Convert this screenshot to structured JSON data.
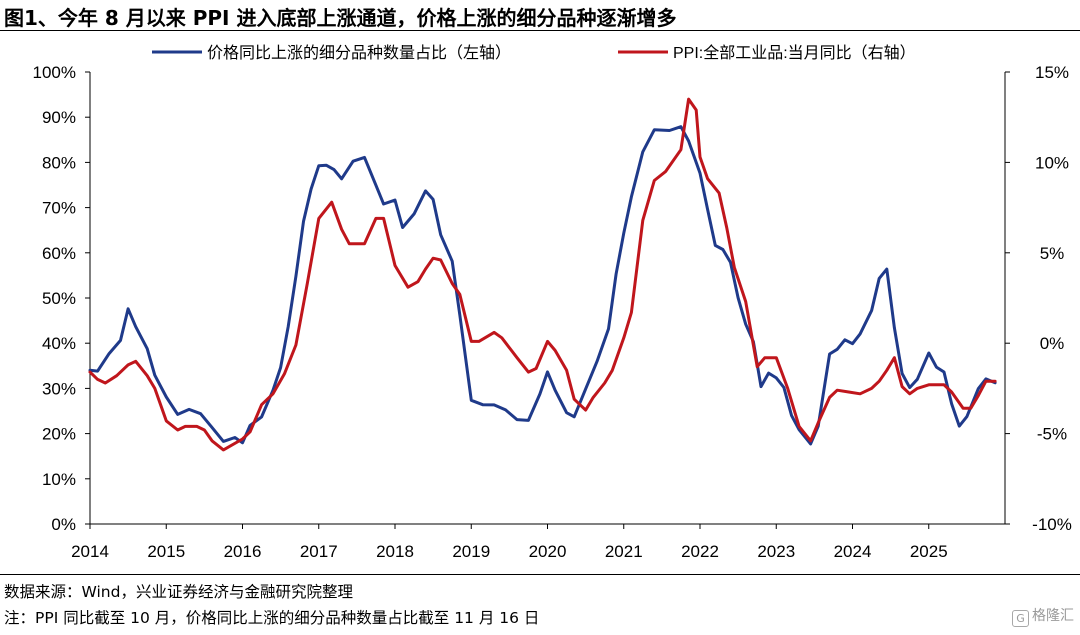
{
  "title": "图1、今年 8 月以来 PPI 进入底部上涨通道，价格上涨的细分品种逐渐增多",
  "source": "数据来源：Wind，兴业证券经济与金融研究院整理",
  "note": "注：PPI 同比截至 10 月，价格同比上涨的细分品种数量占比截至 11 月 16 日",
  "watermark": "格隆汇",
  "chart_data": {
    "type": "line",
    "x_ticks": [
      "2014",
      "2015",
      "2016",
      "2017",
      "2018",
      "2019",
      "2020",
      "2021",
      "2022",
      "2023",
      "2024",
      "2025"
    ],
    "y_left_ticks": [
      "0%",
      "10%",
      "20%",
      "30%",
      "40%",
      "50%",
      "60%",
      "70%",
      "80%",
      "90%",
      "100%"
    ],
    "y_right_ticks": [
      "-10%",
      "-5%",
      "0%",
      "5%",
      "10%",
      "15%"
    ],
    "ylim_left": [
      0,
      100
    ],
    "ylim_right": [
      -10,
      15
    ],
    "legend_position": "top",
    "grid": false,
    "series": [
      {
        "name": "价格同比上涨的细分品种数量占比（左轴）",
        "axis": "left",
        "color": "#1f3a8a",
        "points": [
          [
            2014.0,
            34
          ],
          [
            2014.1,
            34
          ],
          [
            2014.25,
            38
          ],
          [
            2014.4,
            41
          ],
          [
            2014.5,
            48
          ],
          [
            2014.6,
            44
          ],
          [
            2014.75,
            39
          ],
          [
            2014.85,
            33
          ],
          [
            2015.0,
            28
          ],
          [
            2015.15,
            24
          ],
          [
            2015.3,
            25
          ],
          [
            2015.45,
            24
          ],
          [
            2015.6,
            21
          ],
          [
            2015.75,
            18
          ],
          [
            2015.9,
            19
          ],
          [
            2016.0,
            18
          ],
          [
            2016.1,
            22
          ],
          [
            2016.25,
            24
          ],
          [
            2016.4,
            30
          ],
          [
            2016.5,
            35
          ],
          [
            2016.6,
            44
          ],
          [
            2016.7,
            55
          ],
          [
            2016.8,
            67
          ],
          [
            2016.9,
            74
          ],
          [
            2017.0,
            79
          ],
          [
            2017.1,
            79
          ],
          [
            2017.2,
            78
          ],
          [
            2017.3,
            76
          ],
          [
            2017.45,
            80
          ],
          [
            2017.6,
            81
          ],
          [
            2017.75,
            75
          ],
          [
            2017.85,
            71
          ],
          [
            2018.0,
            72
          ],
          [
            2018.1,
            66
          ],
          [
            2018.25,
            69
          ],
          [
            2018.4,
            74
          ],
          [
            2018.5,
            72
          ],
          [
            2018.6,
            64
          ],
          [
            2018.75,
            58
          ],
          [
            2018.85,
            46
          ],
          [
            2019.0,
            27
          ],
          [
            2019.15,
            26
          ],
          [
            2019.3,
            26
          ],
          [
            2019.45,
            25
          ],
          [
            2019.6,
            23
          ],
          [
            2019.75,
            23
          ],
          [
            2019.9,
            29
          ],
          [
            2020.0,
            34
          ],
          [
            2020.1,
            30
          ],
          [
            2020.25,
            25
          ],
          [
            2020.35,
            24
          ],
          [
            2020.5,
            30
          ],
          [
            2020.65,
            36
          ],
          [
            2020.8,
            43
          ],
          [
            2020.9,
            55
          ],
          [
            2021.0,
            64
          ],
          [
            2021.1,
            72
          ],
          [
            2021.25,
            82
          ],
          [
            2021.4,
            87
          ],
          [
            2021.6,
            87
          ],
          [
            2021.75,
            88
          ],
          [
            2021.85,
            85
          ],
          [
            2022.0,
            78
          ],
          [
            2022.1,
            70
          ],
          [
            2022.2,
            62
          ],
          [
            2022.3,
            61
          ],
          [
            2022.4,
            58
          ],
          [
            2022.5,
            50
          ],
          [
            2022.6,
            44
          ],
          [
            2022.7,
            40
          ],
          [
            2022.8,
            30
          ],
          [
            2022.9,
            33
          ],
          [
            2023.0,
            32
          ],
          [
            2023.1,
            30
          ],
          [
            2023.2,
            24
          ],
          [
            2023.3,
            21
          ],
          [
            2023.45,
            18
          ],
          [
            2023.55,
            22
          ],
          [
            2023.7,
            38
          ],
          [
            2023.8,
            39
          ],
          [
            2023.9,
            41
          ],
          [
            2024.0,
            40
          ],
          [
            2024.1,
            42
          ],
          [
            2024.25,
            47
          ],
          [
            2024.35,
            54
          ],
          [
            2024.45,
            56
          ],
          [
            2024.55,
            43
          ],
          [
            2024.65,
            33
          ],
          [
            2024.75,
            30
          ],
          [
            2024.85,
            32
          ],
          [
            2025.0,
            38
          ],
          [
            2025.1,
            35
          ],
          [
            2025.2,
            34
          ],
          [
            2025.3,
            27
          ],
          [
            2025.4,
            22
          ],
          [
            2025.5,
            24
          ],
          [
            2025.65,
            30
          ],
          [
            2025.75,
            32
          ],
          [
            2025.87,
            31
          ]
        ]
      },
      {
        "name": "PPI:全部工业品:当月同比（右轴）",
        "axis": "right",
        "color": "#c0161c",
        "points": [
          [
            2014.0,
            -1.6
          ],
          [
            2014.1,
            -2.0
          ],
          [
            2014.2,
            -2.2
          ],
          [
            2014.35,
            -1.8
          ],
          [
            2014.5,
            -1.2
          ],
          [
            2014.6,
            -1.0
          ],
          [
            2014.75,
            -1.8
          ],
          [
            2014.85,
            -2.5
          ],
          [
            2015.0,
            -4.3
          ],
          [
            2015.15,
            -4.8
          ],
          [
            2015.25,
            -4.6
          ],
          [
            2015.4,
            -4.6
          ],
          [
            2015.5,
            -4.8
          ],
          [
            2015.6,
            -5.4
          ],
          [
            2015.75,
            -5.9
          ],
          [
            2016.0,
            -5.3
          ],
          [
            2016.1,
            -4.9
          ],
          [
            2016.25,
            -3.4
          ],
          [
            2016.4,
            -2.8
          ],
          [
            2016.55,
            -1.7
          ],
          [
            2016.7,
            -0.1
          ],
          [
            2016.85,
            3.3
          ],
          [
            2017.0,
            6.9
          ],
          [
            2017.17,
            7.8
          ],
          [
            2017.3,
            6.3
          ],
          [
            2017.4,
            5.5
          ],
          [
            2017.6,
            5.5
          ],
          [
            2017.75,
            6.9
          ],
          [
            2017.85,
            6.9
          ],
          [
            2018.0,
            4.3
          ],
          [
            2018.17,
            3.1
          ],
          [
            2018.3,
            3.4
          ],
          [
            2018.4,
            4.1
          ],
          [
            2018.5,
            4.7
          ],
          [
            2018.6,
            4.6
          ],
          [
            2018.75,
            3.3
          ],
          [
            2018.85,
            2.7
          ],
          [
            2019.0,
            0.1
          ],
          [
            2019.1,
            0.1
          ],
          [
            2019.3,
            0.6
          ],
          [
            2019.4,
            0.3
          ],
          [
            2019.6,
            -0.8
          ],
          [
            2019.75,
            -1.6
          ],
          [
            2019.85,
            -1.4
          ],
          [
            2020.0,
            0.1
          ],
          [
            2020.1,
            -0.4
          ],
          [
            2020.25,
            -1.5
          ],
          [
            2020.35,
            -3.1
          ],
          [
            2020.5,
            -3.7
          ],
          [
            2020.6,
            -3.0
          ],
          [
            2020.75,
            -2.2
          ],
          [
            2020.85,
            -1.5
          ],
          [
            2021.0,
            0.3
          ],
          [
            2021.1,
            1.7
          ],
          [
            2021.25,
            6.8
          ],
          [
            2021.4,
            9.0
          ],
          [
            2021.55,
            9.5
          ],
          [
            2021.75,
            10.7
          ],
          [
            2021.85,
            13.5
          ],
          [
            2021.95,
            12.9
          ],
          [
            2022.0,
            10.3
          ],
          [
            2022.1,
            9.1
          ],
          [
            2022.25,
            8.3
          ],
          [
            2022.35,
            6.4
          ],
          [
            2022.45,
            4.2
          ],
          [
            2022.6,
            2.3
          ],
          [
            2022.75,
            -1.3
          ],
          [
            2022.85,
            -0.8
          ],
          [
            2023.0,
            -0.8
          ],
          [
            2023.15,
            -2.5
          ],
          [
            2023.3,
            -4.6
          ],
          [
            2023.45,
            -5.4
          ],
          [
            2023.55,
            -4.4
          ],
          [
            2023.7,
            -3.0
          ],
          [
            2023.8,
            -2.6
          ],
          [
            2023.95,
            -2.7
          ],
          [
            2024.1,
            -2.8
          ],
          [
            2024.25,
            -2.5
          ],
          [
            2024.35,
            -2.1
          ],
          [
            2024.45,
            -1.5
          ],
          [
            2024.55,
            -0.8
          ],
          [
            2024.65,
            -2.4
          ],
          [
            2024.75,
            -2.8
          ],
          [
            2024.85,
            -2.5
          ],
          [
            2025.0,
            -2.3
          ],
          [
            2025.2,
            -2.3
          ],
          [
            2025.3,
            -2.7
          ],
          [
            2025.45,
            -3.6
          ],
          [
            2025.55,
            -3.6
          ],
          [
            2025.65,
            -2.9
          ],
          [
            2025.75,
            -2.1
          ],
          [
            2025.87,
            -2.1
          ]
        ]
      }
    ]
  }
}
